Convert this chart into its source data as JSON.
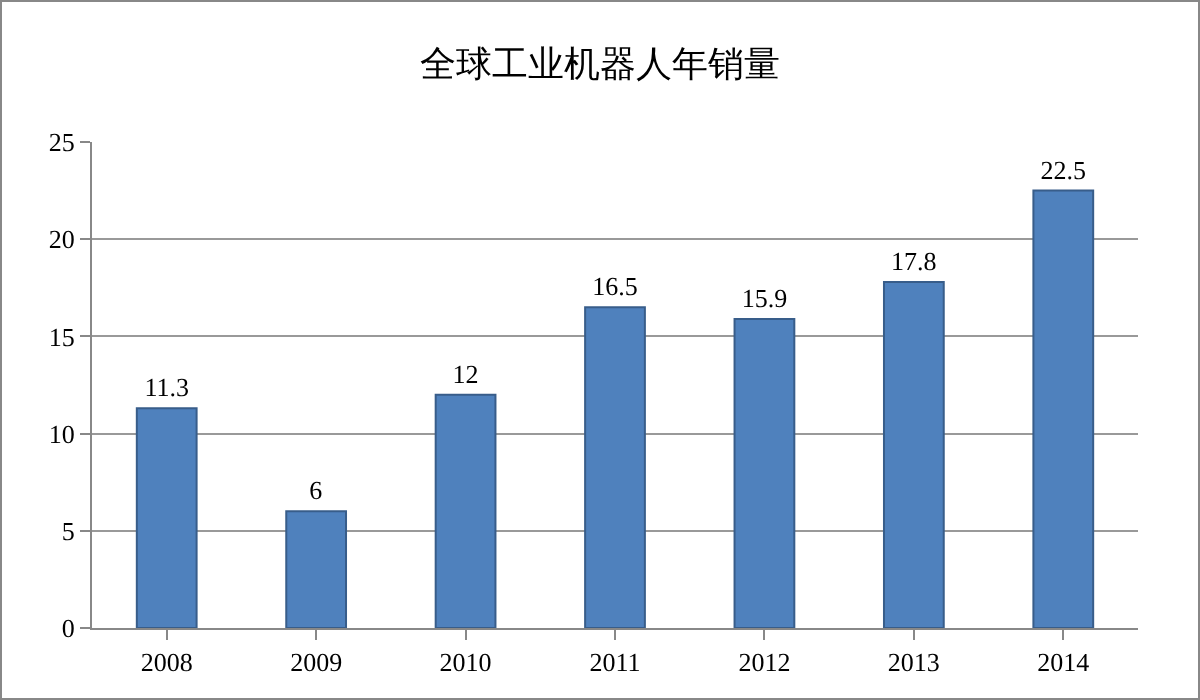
{
  "chart_data": {
    "type": "bar",
    "title": "全球工业机器人年销量",
    "categories": [
      "2008",
      "2009",
      "2010",
      "2011",
      "2012",
      "2013",
      "2014"
    ],
    "values": [
      11.3,
      6,
      12,
      16.5,
      15.9,
      17.8,
      22.5
    ],
    "color": "#4f81bd",
    "ylim": [
      0,
      25
    ],
    "yticks": [
      0,
      5,
      10,
      15,
      20,
      25
    ],
    "grid": true,
    "data_labels": true,
    "legend": false
  }
}
